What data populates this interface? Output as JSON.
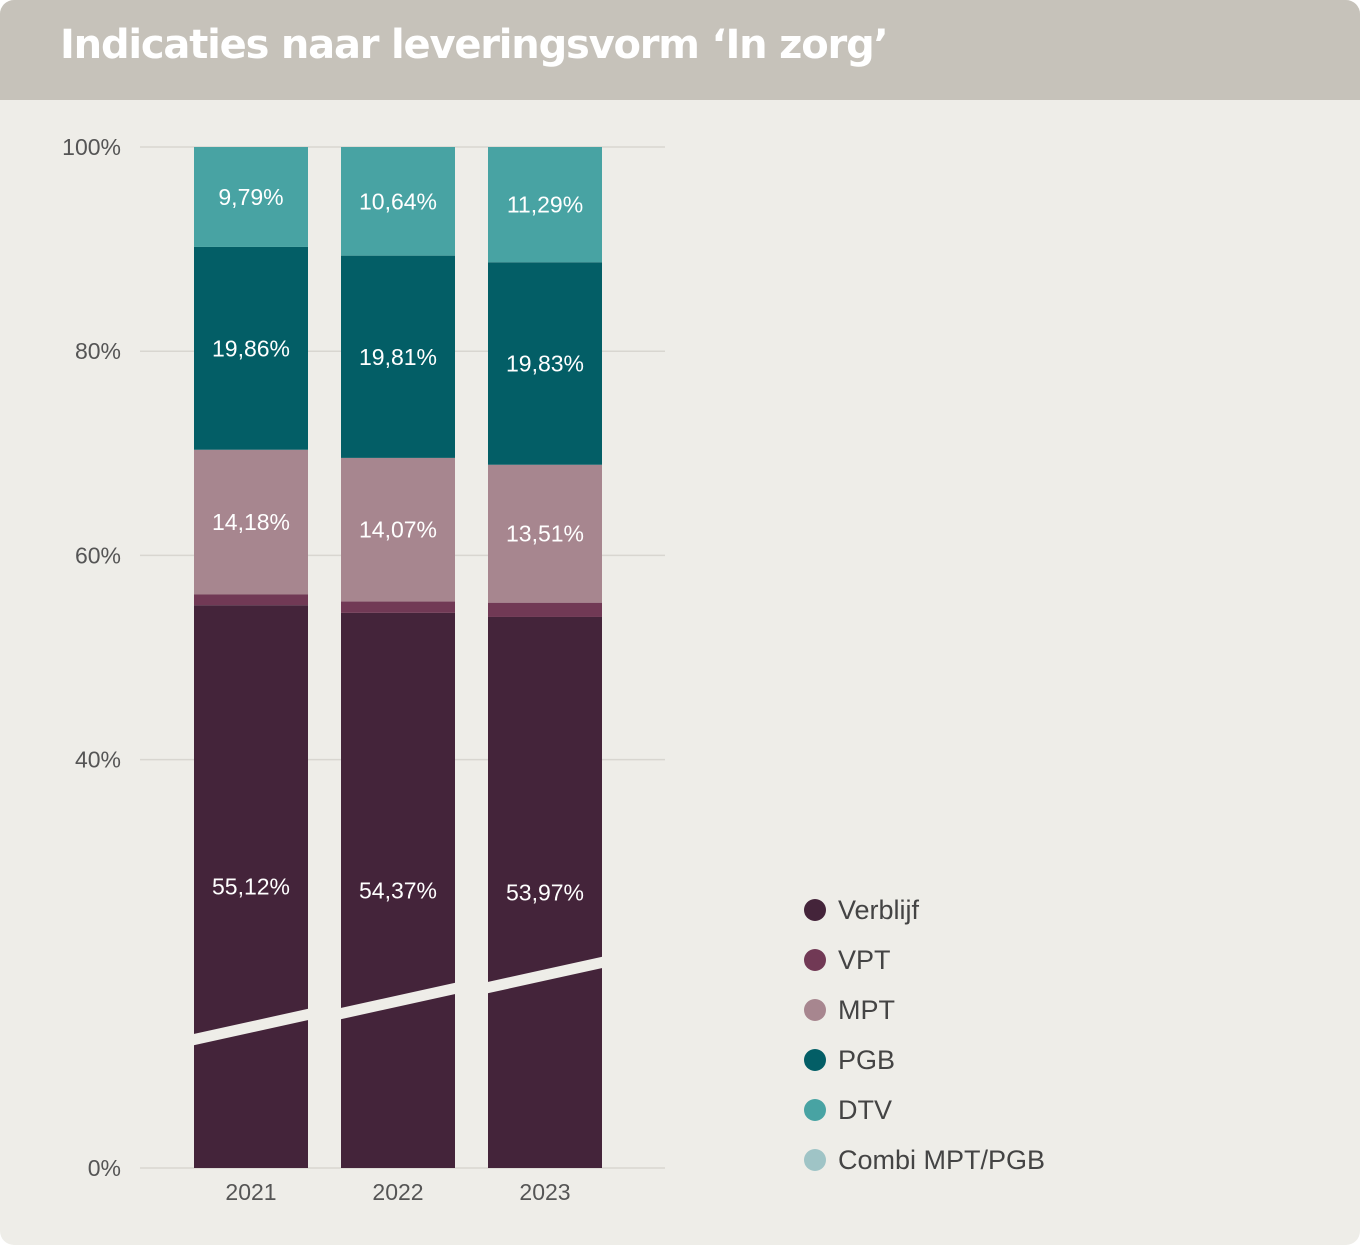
{
  "header": {
    "title": "Indicaties naar leveringsvorm ‘In zorg’"
  },
  "colors": {
    "header_bg": "#c6c2ba",
    "card_bg": "#eeede8",
    "gridline": "#d8d6d0",
    "axis_text": "#555555"
  },
  "chart_data": {
    "type": "bar",
    "stacked": true,
    "categories": [
      "2021",
      "2022",
      "2023"
    ],
    "ylim": [
      0,
      100
    ],
    "yticks": [
      "0%",
      "40%",
      "60%",
      "80%",
      "100%"
    ],
    "ytick_values": [
      0,
      40,
      60,
      80,
      100
    ],
    "axis_break": true,
    "grid": true,
    "legend_position": "right",
    "series": [
      {
        "name": "Verblijf",
        "color": "#44243a",
        "values": [
          55.12,
          54.37,
          53.97
        ],
        "labels": [
          "55,12%",
          "54,37%",
          "53,97%"
        ]
      },
      {
        "name": "VPT",
        "color": "#713955",
        "values": [
          1.05,
          1.11,
          1.4
        ],
        "labels": [
          null,
          null,
          null
        ]
      },
      {
        "name": "MPT",
        "color": "#a7868f",
        "values": [
          14.18,
          14.07,
          13.51
        ],
        "labels": [
          "14,18%",
          "14,07%",
          "13,51%"
        ]
      },
      {
        "name": "PGB",
        "color": "#035e66",
        "values": [
          19.86,
          19.81,
          19.83
        ],
        "labels": [
          "19,86%",
          "19,81%",
          "19,83%"
        ]
      },
      {
        "name": "DTV",
        "color": "#48a3a3",
        "values": [
          9.79,
          10.64,
          11.29
        ],
        "labels": [
          "9,79%",
          "10,64%",
          "11,29%"
        ]
      },
      {
        "name": "Combi MPT/PGB",
        "color": "#9fc4c6",
        "values": [
          0,
          0,
          0
        ],
        "labels": [
          null,
          null,
          null
        ]
      }
    ]
  }
}
